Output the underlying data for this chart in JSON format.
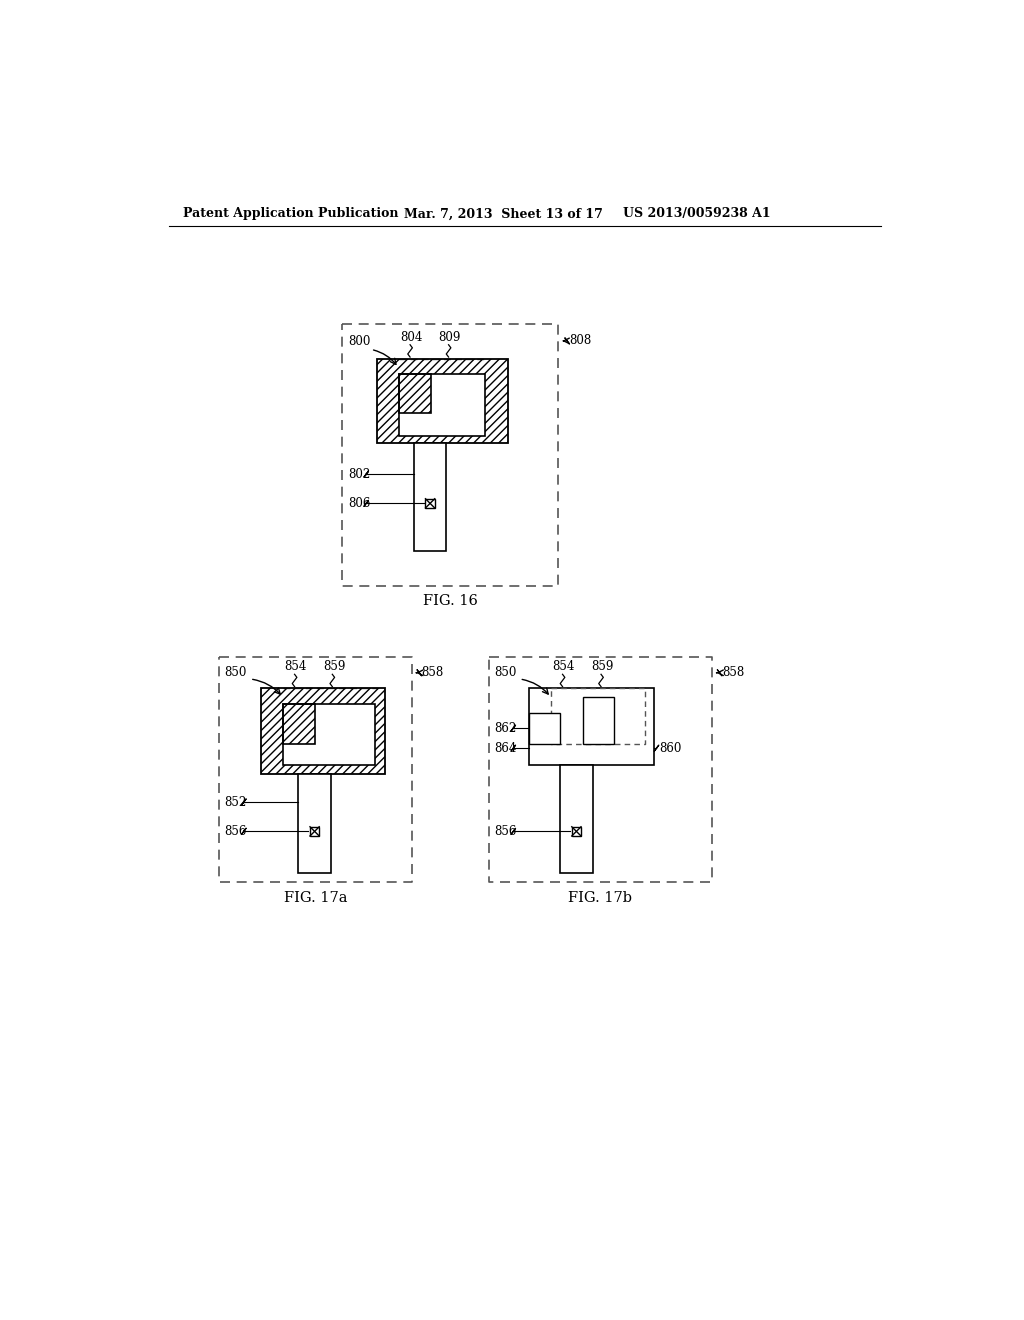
{
  "title_left": "Patent Application Publication",
  "title_mid": "Mar. 7, 2013  Sheet 13 of 17",
  "title_right": "US 2013/0059238 A1",
  "fig16_label": "FIG. 16",
  "fig17a_label": "FIG. 17a",
  "fig17b_label": "FIG. 17b",
  "background": "#ffffff",
  "line_color": "#000000",
  "dashed_color": "#555555"
}
